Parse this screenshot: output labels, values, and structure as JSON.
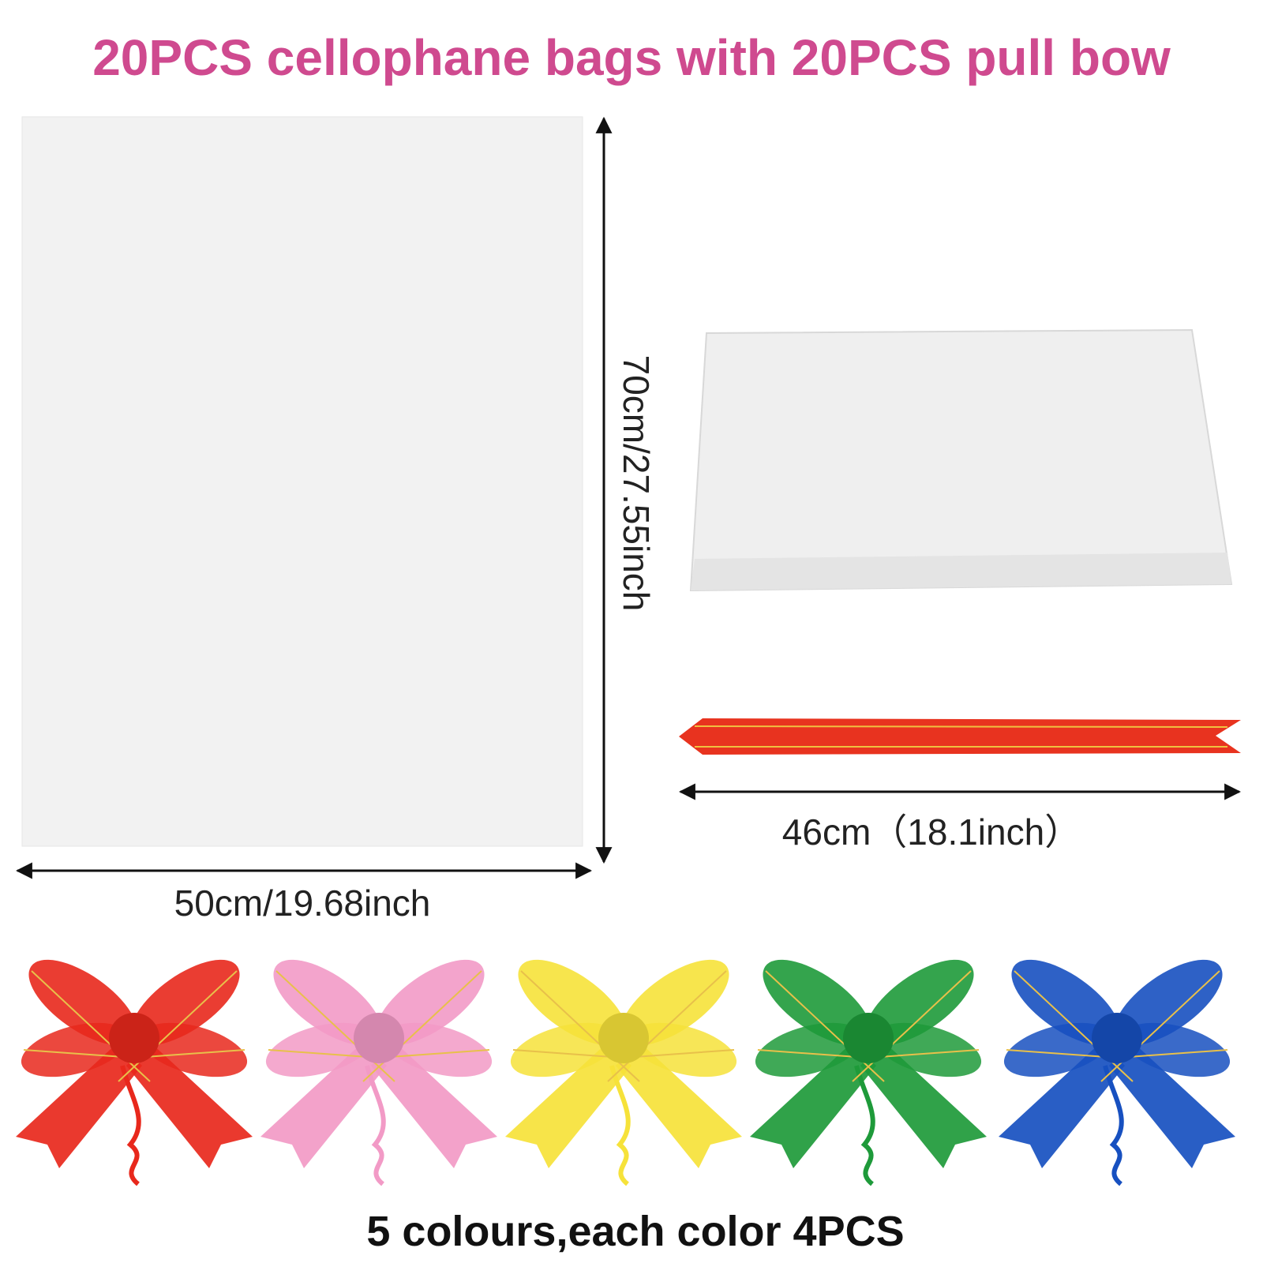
{
  "header": {
    "title": "20PCS cellophane bags with 20PCS pull bow"
  },
  "dimensions": {
    "bag_height": "70cm/27.55inch",
    "bag_width": "50cm/19.68inch",
    "bow_length": "46cm（18.1inch）"
  },
  "footer": {
    "caption": "5 colours,each color 4PCS"
  }
}
